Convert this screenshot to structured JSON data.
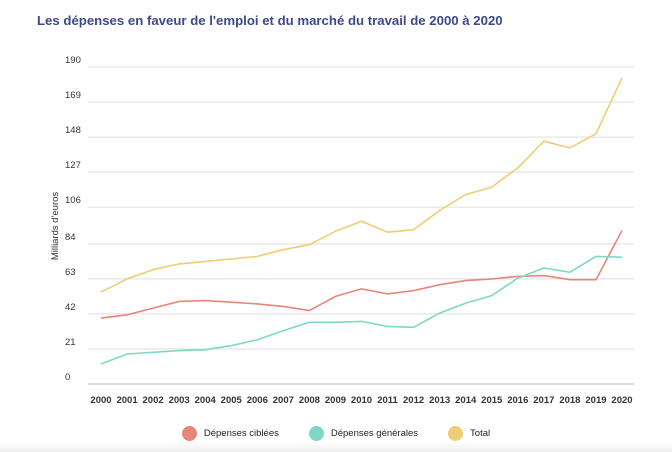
{
  "title": "Les dépenses en faveur de l'emploi et du marché du travail de 2000 à 2020",
  "chart_data": {
    "type": "line",
    "title": "Les dépenses en faveur de l'emploi et du marché du travail de 2000 à 2020",
    "ylabel": "Milliards d'euros",
    "xlabel": "",
    "ylim": [
      0,
      190
    ],
    "yticks": [
      "0",
      "21",
      "42",
      "63",
      "84",
      "106",
      "127",
      "148",
      "169",
      "190"
    ],
    "grid": true,
    "legend_position": "bottom",
    "categories": [
      "2000",
      "2001",
      "2002",
      "2003",
      "2004",
      "2005",
      "2006",
      "2007",
      "2008",
      "2009",
      "2010",
      "2011",
      "2012",
      "2013",
      "2014",
      "2015",
      "2016",
      "2017",
      "2018",
      "2019",
      "2020"
    ],
    "series": [
      {
        "name": "Dépenses ciblées",
        "color": "#e8857a",
        "values": [
          39.5,
          41.5,
          45.5,
          49.5,
          50,
          49,
          48,
          46.5,
          44,
          52.5,
          57,
          54,
          56,
          59.5,
          62,
          63,
          64.5,
          65,
          62.5,
          62.5,
          92
        ]
      },
      {
        "name": "Dépenses générales",
        "color": "#7fd8c6",
        "values": [
          12,
          18,
          19,
          20,
          20.5,
          23,
          26.5,
          32,
          37,
          37,
          37.5,
          34.5,
          34,
          42.5,
          48.5,
          53,
          63.5,
          69.5,
          67,
          76.5,
          76
        ]
      },
      {
        "name": "Total",
        "color": "#f2cc74",
        "values": [
          55,
          63,
          68.5,
          72,
          73.5,
          75,
          76.5,
          80.5,
          83.5,
          91.5,
          97.5,
          91,
          92.5,
          104,
          113.5,
          118,
          129.5,
          145.5,
          141.5,
          150,
          183.5
        ]
      }
    ]
  }
}
